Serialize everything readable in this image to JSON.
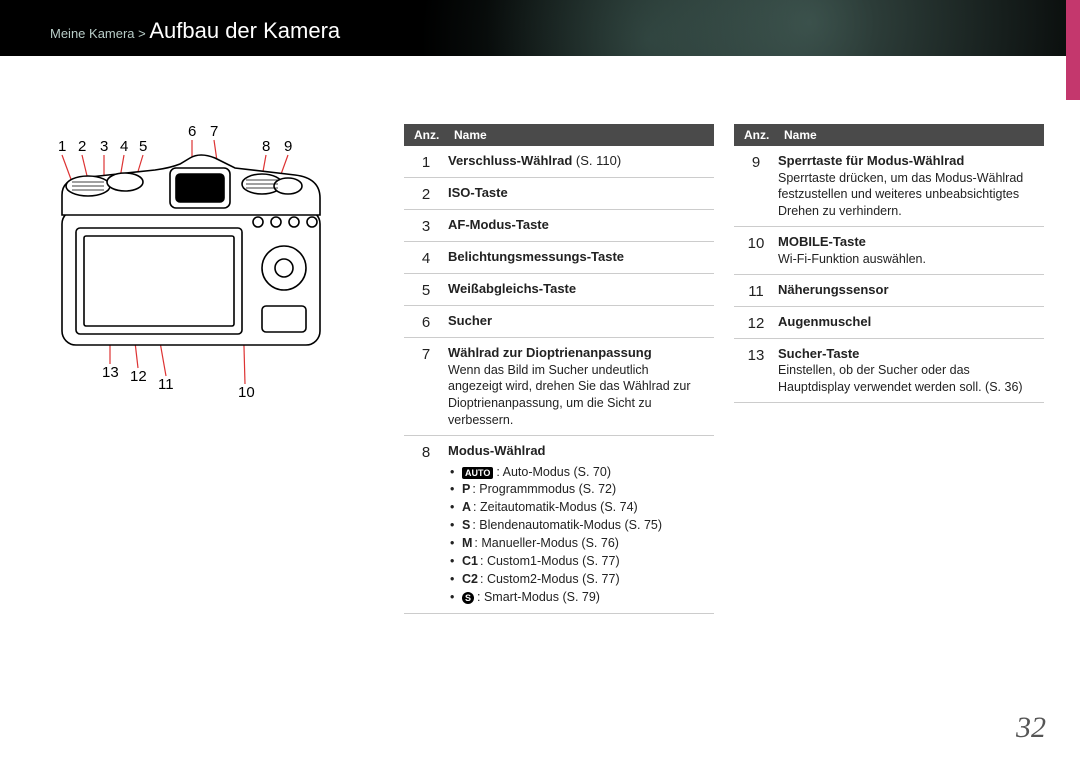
{
  "header": {
    "breadcrumb_pre": "Meine Kamera > ",
    "breadcrumb_main": "Aufbau der Kamera"
  },
  "accent_color": "#c4376d",
  "camera_labels": {
    "top": [
      "1",
      "2",
      "3",
      "4",
      "5",
      "6",
      "7",
      "8",
      "9"
    ],
    "bottom": [
      "13",
      "12",
      "11",
      "10"
    ]
  },
  "table_headers": {
    "col1": "Anz.",
    "col2": "Name"
  },
  "left_rows": [
    {
      "num": "1",
      "bold": "Verschluss-Wählrad",
      "ref": " (S. 110)"
    },
    {
      "num": "2",
      "bold": "ISO-Taste"
    },
    {
      "num": "3",
      "bold": "AF-Modus-Taste"
    },
    {
      "num": "4",
      "bold": "Belichtungsmessungs-Taste"
    },
    {
      "num": "5",
      "bold": "Weißabgleichs-Taste"
    },
    {
      "num": "6",
      "bold": "Sucher"
    },
    {
      "num": "7",
      "bold": "Wählrad zur Dioptrienanpassung",
      "desc": "Wenn das Bild im Sucher undeutlich angezeigt wird, drehen Sie das Wählrad zur Dioptrienanpassung, um die Sicht zu verbessern."
    },
    {
      "num": "8",
      "bold": "Modus-Wählrad",
      "modes": [
        {
          "sym": "AUTO",
          "kind": "box",
          "text": "Auto-Modus (S. 70)"
        },
        {
          "sym": "P",
          "text": "Programmmodus (S. 72)"
        },
        {
          "sym": "A",
          "text": "Zeitautomatik-Modus (S. 74)"
        },
        {
          "sym": "S",
          "text": "Blendenautomatik-Modus (S. 75)"
        },
        {
          "sym": "M",
          "text": "Manueller-Modus (S. 76)"
        },
        {
          "sym": "C1",
          "text": "Custom1-Modus (S. 77)"
        },
        {
          "sym": "C2",
          "text": "Custom2-Modus (S. 77)"
        },
        {
          "sym": "S",
          "kind": "circle",
          "text": "Smart-Modus (S. 79)"
        }
      ]
    }
  ],
  "right_rows": [
    {
      "num": "9",
      "bold": "Sperrtaste für Modus-Wählrad",
      "desc": "Sperrtaste drücken, um das Modus-Wählrad festzustellen und weiteres unbeabsichtigtes Drehen zu verhindern."
    },
    {
      "num": "10",
      "bold": "MOBILE-Taste",
      "desc": "Wi-Fi-Funktion auswählen."
    },
    {
      "num": "11",
      "bold": "Näherungssensor"
    },
    {
      "num": "12",
      "bold": "Augenmuschel"
    },
    {
      "num": "13",
      "bold": "Sucher-Taste",
      "desc": "Einstellen, ob der Sucher oder das Hauptdisplay verwendet werden soll. (S. 36)"
    }
  ],
  "page_number": "32"
}
